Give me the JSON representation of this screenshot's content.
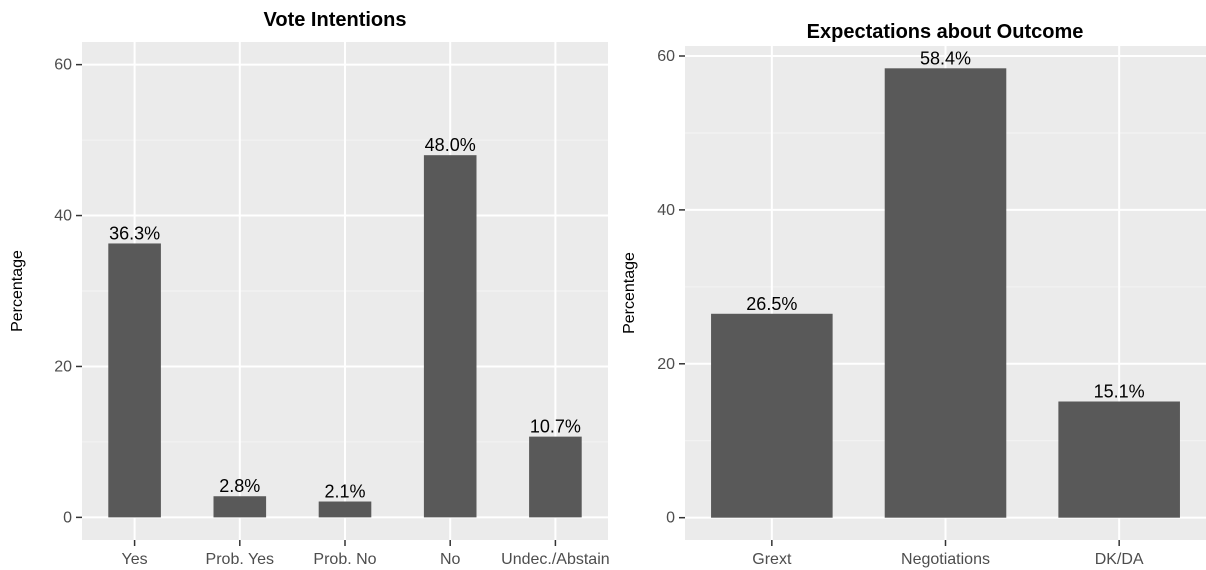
{
  "chart_data": [
    {
      "type": "bar",
      "title": "Vote Intentions",
      "xlabel": "",
      "ylabel": "Percentage",
      "categories": [
        "Yes",
        "Prob. Yes",
        "Prob. No",
        "No",
        "Undec./Abstain"
      ],
      "values": [
        36.3,
        2.8,
        2.1,
        48.0,
        10.7
      ],
      "data_labels": [
        "36.3%",
        "2.8%",
        "2.1%",
        "48.0%",
        "10.7%"
      ],
      "yticks": [
        0,
        20,
        40,
        60
      ],
      "ylim": [
        -3,
        63
      ],
      "grid": true,
      "legend": "none",
      "bar_color": "#595959",
      "panel_color": "#ebebeb"
    },
    {
      "type": "bar",
      "title": "Expectations about Outcome",
      "xlabel": "",
      "ylabel": "Percentage",
      "categories": [
        "Grext",
        "Negotiations",
        "DK/DA"
      ],
      "values": [
        26.5,
        58.4,
        15.1
      ],
      "data_labels": [
        "26.5%",
        "58.4%",
        "15.1%"
      ],
      "yticks": [
        0,
        20,
        40,
        60
      ],
      "ylim": [
        -2.9,
        61.3
      ],
      "grid": true,
      "legend": "none",
      "bar_color": "#595959",
      "panel_color": "#ebebeb"
    }
  ]
}
